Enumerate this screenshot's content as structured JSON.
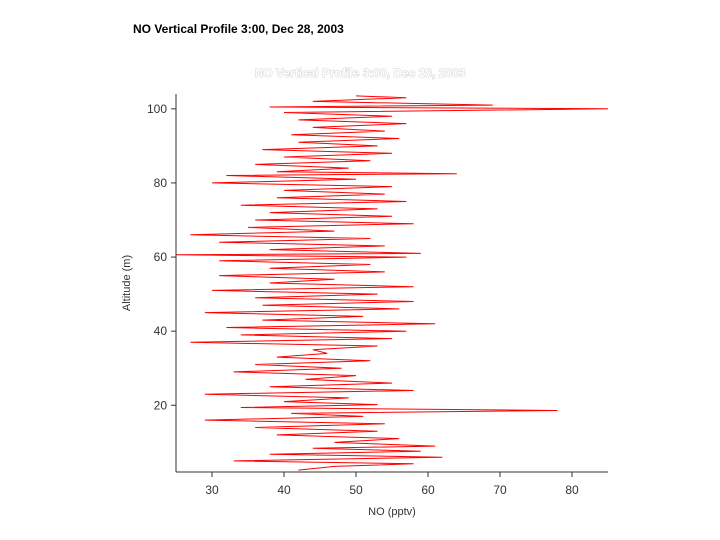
{
  "slide": {
    "title": "NO Vertical Profile 3:00, Dec 28, 2003"
  },
  "chart_data": {
    "type": "line",
    "title": "NO Vertical Profile 3:00, Dec 28, 2003",
    "xlabel": "NO (pptv)",
    "ylabel": "Altitude (m)",
    "xlim": [
      25,
      85
    ],
    "ylim": [
      2,
      104
    ],
    "xticks": [
      30,
      40,
      50,
      60,
      70,
      80
    ],
    "yticks": [
      20,
      40,
      60,
      80,
      100
    ],
    "series_color": "#ff0000",
    "series": [
      {
        "points": [
          [
            42,
            2.5
          ],
          [
            47,
            3.5
          ],
          [
            58,
            4.2
          ],
          [
            33,
            5
          ],
          [
            62,
            6
          ],
          [
            38,
            6.8
          ],
          [
            59,
            7.6
          ],
          [
            44,
            8.4
          ],
          [
            61,
            9
          ],
          [
            47,
            10
          ],
          [
            56,
            11
          ],
          [
            39,
            12
          ],
          [
            53,
            13
          ],
          [
            36,
            14
          ],
          [
            54,
            15
          ],
          [
            29,
            16
          ],
          [
            51,
            17
          ],
          [
            41,
            17.8
          ],
          [
            78,
            18.6
          ],
          [
            34,
            19.4
          ],
          [
            53,
            20.2
          ],
          [
            40,
            21
          ],
          [
            49,
            22
          ],
          [
            29,
            23
          ],
          [
            58,
            24
          ],
          [
            38,
            25
          ],
          [
            55,
            26
          ],
          [
            43,
            27
          ],
          [
            50,
            28
          ],
          [
            33,
            29
          ],
          [
            48,
            30
          ],
          [
            36,
            31
          ],
          [
            52,
            32
          ],
          [
            39,
            33
          ],
          [
            46,
            34
          ],
          [
            44,
            35
          ],
          [
            53,
            36
          ],
          [
            27,
            37
          ],
          [
            55,
            38
          ],
          [
            34,
            39
          ],
          [
            57,
            40
          ],
          [
            32,
            41
          ],
          [
            61,
            42
          ],
          [
            37,
            43
          ],
          [
            51,
            44
          ],
          [
            29,
            45
          ],
          [
            56,
            46
          ],
          [
            37,
            47
          ],
          [
            58,
            48
          ],
          [
            36,
            49
          ],
          [
            53,
            50
          ],
          [
            30,
            51
          ],
          [
            58,
            52
          ],
          [
            38,
            53
          ],
          [
            47,
            54
          ],
          [
            31,
            55
          ],
          [
            54,
            56
          ],
          [
            38,
            57
          ],
          [
            52,
            58
          ],
          [
            31,
            59
          ],
          [
            57,
            60
          ],
          [
            25,
            60.6
          ],
          [
            59,
            61
          ],
          [
            38,
            62
          ],
          [
            54,
            63
          ],
          [
            31,
            64
          ],
          [
            52,
            65
          ],
          [
            27,
            66
          ],
          [
            47,
            67
          ],
          [
            35,
            68
          ],
          [
            58,
            69
          ],
          [
            36,
            70
          ],
          [
            55,
            71
          ],
          [
            38,
            72
          ],
          [
            53,
            73
          ],
          [
            34,
            74
          ],
          [
            57,
            75
          ],
          [
            39,
            76
          ],
          [
            54,
            77
          ],
          [
            40,
            78
          ],
          [
            55,
            79
          ],
          [
            30,
            80
          ],
          [
            50,
            81
          ],
          [
            32,
            82
          ],
          [
            64,
            82.5
          ],
          [
            39,
            83
          ],
          [
            49,
            84
          ],
          [
            36,
            85
          ],
          [
            52,
            86
          ],
          [
            40,
            87
          ],
          [
            55,
            88
          ],
          [
            37,
            89
          ],
          [
            53,
            90
          ],
          [
            42,
            91
          ],
          [
            56,
            92
          ],
          [
            41,
            93
          ],
          [
            54,
            94
          ],
          [
            44,
            95
          ],
          [
            57,
            96
          ],
          [
            42,
            97
          ],
          [
            55,
            98
          ],
          [
            40,
            99
          ],
          [
            85,
            100
          ],
          [
            38,
            100.5
          ],
          [
            69,
            101
          ],
          [
            44,
            102
          ],
          [
            57,
            103
          ],
          [
            50,
            103.5
          ]
        ]
      }
    ]
  }
}
